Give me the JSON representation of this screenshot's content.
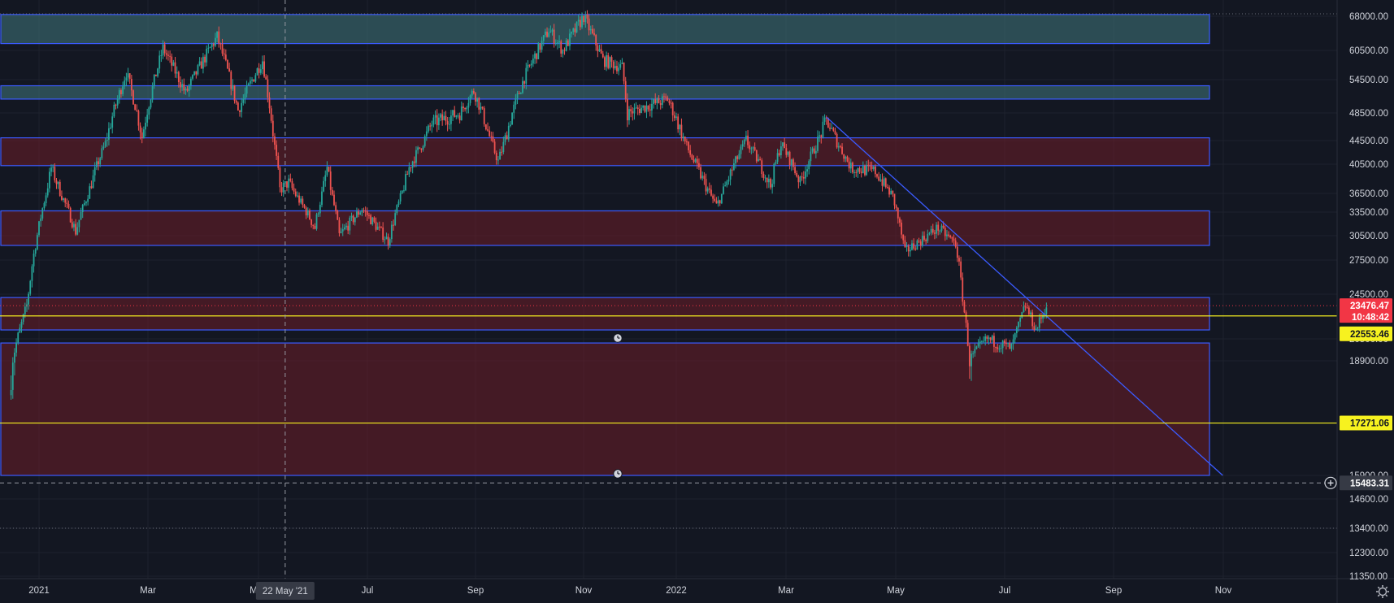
{
  "chart_data": {
    "type": "candlestick",
    "title": "",
    "x_start": "2020-12-15",
    "x_end": "2022-11-30",
    "y_axis_ticks": [
      "68000.00",
      "60500.00",
      "54500.00",
      "48500.00",
      "44500.00",
      "40500.00",
      "36500.00",
      "33500.00",
      "30500.00",
      "27500.00",
      "24500.00",
      "20500.00",
      "18900.00",
      "15900.00",
      "14600.00",
      "13400.00",
      "12300.00",
      "11350.00"
    ],
    "x_axis_ticks": [
      "2021",
      "Mar",
      "May",
      "Jul",
      "Sep",
      "Nov",
      "2022",
      "Mar",
      "May",
      "Jul",
      "Sep",
      "Nov"
    ],
    "crosshair": {
      "date_label": "22 May '21",
      "price_label": "15483.31",
      "price": 15483.31,
      "date": "2021-05-22"
    },
    "price_labels": {
      "last": {
        "value": "23476.47",
        "countdown": "10:48:42",
        "price": 23476.47,
        "color": "#f23645"
      },
      "level_1": {
        "value": "22553.46",
        "price": 22553.46,
        "color": "#f7f21f"
      },
      "level_2": {
        "value": "17271.06",
        "price": 17271.06,
        "color": "#f7f21f"
      }
    },
    "zones": [
      {
        "low": 62000,
        "high": 68500,
        "kind": "supply-teal"
      },
      {
        "low": 51000,
        "high": 53400,
        "kind": "supply-teal"
      },
      {
        "low": 40300,
        "high": 44900,
        "kind": "red"
      },
      {
        "low": 29300,
        "high": 33700,
        "kind": "red"
      },
      {
        "low": 21300,
        "high": 24200,
        "kind": "red"
      },
      {
        "low": 15900,
        "high": 20200,
        "kind": "red"
      }
    ],
    "trendline": {
      "from": {
        "date": "2022-03-28",
        "price": 47900
      },
      "to": {
        "date": "2022-11-10",
        "price": 15900
      }
    },
    "dotted_levels": [
      68700,
      13400
    ],
    "path_points": [
      [
        "2020-12-15",
        18000
      ],
      [
        "2020-12-25",
        23500
      ],
      [
        "2021-01-08",
        40000
      ],
      [
        "2021-01-22",
        31000
      ],
      [
        "2021-02-08",
        44000
      ],
      [
        "2021-02-20",
        56000
      ],
      [
        "2021-03-01",
        45000
      ],
      [
        "2021-03-13",
        61000
      ],
      [
        "2021-03-26",
        52000
      ],
      [
        "2021-04-13",
        63500
      ],
      [
        "2021-04-25",
        49000
      ],
      [
        "2021-05-09",
        58500
      ],
      [
        "2021-05-19",
        37000
      ],
      [
        "2021-05-24",
        38000
      ],
      [
        "2021-06-08",
        31500
      ],
      [
        "2021-06-15",
        40000
      ],
      [
        "2021-06-22",
        30500
      ],
      [
        "2021-07-05",
        34000
      ],
      [
        "2021-07-20",
        29800
      ],
      [
        "2021-08-01",
        40000
      ],
      [
        "2021-08-14",
        47000
      ],
      [
        "2021-08-30",
        48500
      ],
      [
        "2021-09-07",
        52500
      ],
      [
        "2021-09-21",
        41000
      ],
      [
        "2021-10-06",
        55000
      ],
      [
        "2021-10-20",
        65000
      ],
      [
        "2021-10-28",
        60500
      ],
      [
        "2021-11-09",
        68000
      ],
      [
        "2021-11-20",
        58500
      ],
      [
        "2021-12-01",
        57000
      ],
      [
        "2021-12-04",
        48500
      ],
      [
        "2021-12-27",
        51000
      ],
      [
        "2022-01-10",
        41500
      ],
      [
        "2022-01-24",
        34500
      ],
      [
        "2022-02-10",
        44500
      ],
      [
        "2022-02-24",
        37500
      ],
      [
        "2022-03-02",
        44000
      ],
      [
        "2022-03-13",
        38000
      ],
      [
        "2022-03-28",
        47500
      ],
      [
        "2022-04-11",
        40000
      ],
      [
        "2022-04-25",
        39500
      ],
      [
        "2022-05-05",
        36000
      ],
      [
        "2022-05-12",
        28500
      ],
      [
        "2022-05-31",
        31500
      ],
      [
        "2022-06-10",
        29500
      ],
      [
        "2022-06-18",
        19000
      ],
      [
        "2022-06-28",
        20500
      ],
      [
        "2022-07-12",
        19800
      ],
      [
        "2022-07-20",
        23500
      ],
      [
        "2022-07-26",
        21300
      ],
      [
        "2022-08-01",
        23476
      ]
    ]
  }
}
